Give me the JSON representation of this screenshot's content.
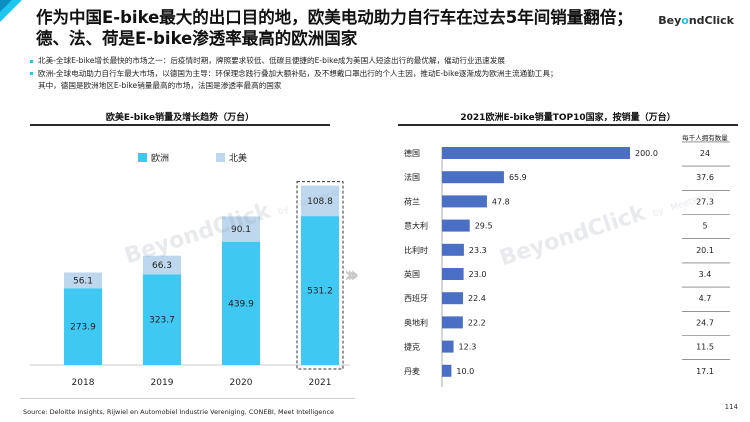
{
  "header": {
    "title": "作为中国E-bike最大的出口目的地，欧美电动助力自行车在过去5年间销量翻倍；德、法、荷是E-bike渗透率最高的欧洲国家",
    "logo": "BeyondClick"
  },
  "bullets": [
    "北美-全球E-bike增长最快的市场之一：后疫情时期，牌照要求较低、低碳且便捷的E-bike成为美国人短途出行的最优解，催动行业迅速发展",
    "欧洲-全球电动助力自行车最大市场，以德国为主导：环保理念践行叠加大额补贴，及不想戴口罩出行的个人主因，推动E-bike逐渐成为欧洲主流通勤工具；",
    "其中，德国是欧洲地区E-bike销量最高的市场，法国是渗透率最高的国家"
  ],
  "watermark": {
    "text": "BeyondClick",
    "by": "by",
    "partner": "Meetsocial"
  },
  "left_title": "欧美E-bike销量及增长趋势（万台）",
  "right_title": "2021欧洲E-bike销量TOP10国家，按销量（万台）",
  "right_extra_header": "每千人拥有数量",
  "source": "Source: Deloitte Insights, Rijwiel en Automobiel Industrie Vereniging, CONEBI, Meet Intelligence",
  "page_number": "114",
  "colors": {
    "europe": "#3ec8f2",
    "na": "#bcd7ee",
    "hbar": "#4a6fc4",
    "accent": "#1ec6f0"
  },
  "chart_data": [
    {
      "type": "bar",
      "stacked": true,
      "categories": [
        "2018",
        "2019",
        "2020",
        "2021"
      ],
      "series": [
        {
          "name": "欧洲",
          "values": [
            273.9,
            323.7,
            439.9,
            531.2
          ]
        },
        {
          "name": "北美",
          "values": [
            56.1,
            66.3,
            90.1,
            108.8
          ]
        }
      ],
      "highlight_category": "2021",
      "legend": "top-left",
      "ylim": [
        0,
        660
      ]
    },
    {
      "type": "bar",
      "orientation": "horizontal",
      "categories": [
        "德国",
        "法国",
        "荷兰",
        "意大利",
        "比利时",
        "英国",
        "西班牙",
        "奥地利",
        "捷克",
        "丹麦"
      ],
      "values": [
        200.0,
        65.9,
        47.8,
        29.5,
        23.3,
        23.0,
        22.4,
        22.2,
        12.3,
        10.0
      ],
      "value_labels": [
        "200.0",
        "65.9",
        "47.8",
        "29.5",
        "23.3",
        "23.0",
        "22.4",
        "22.2",
        "12.3",
        "10.0"
      ],
      "per_thousand": [
        "24",
        "37.6",
        "27.3",
        "5",
        "20.1",
        "3.4",
        "4.7",
        "24.7",
        "11.5",
        "17.1"
      ],
      "xlim": [
        0,
        200
      ]
    }
  ]
}
